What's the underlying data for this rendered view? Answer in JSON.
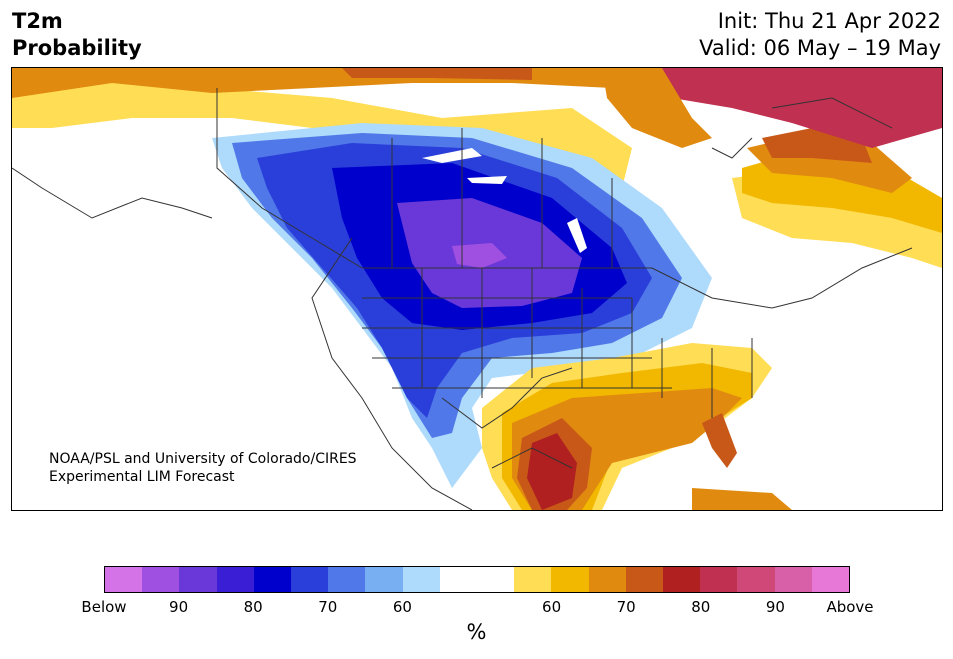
{
  "header": {
    "title": "T2m\nProbability",
    "init": "Init: Thu 21 Apr 2022",
    "valid": "Valid: 06 May – 19 May"
  },
  "credit": {
    "line1": "NOAA/PSL and University of Colorado/CIRES",
    "line2": "Experimental LIM Forecast"
  },
  "legend": {
    "unit": "%",
    "colors": [
      "#d472e8",
      "#a050e0",
      "#6a38d8",
      "#3a1ed6",
      "#0000cc",
      "#2a3fda",
      "#5078e8",
      "#78aef2",
      "#aedafb",
      "#ffffff",
      "#ffffff",
      "#ffdd55",
      "#f2b800",
      "#e08a10",
      "#c85818",
      "#b02020",
      "#c03050",
      "#d04878",
      "#d860a8",
      "#e878d8"
    ],
    "ticks": [
      "Below",
      "90",
      "80",
      "70",
      "60",
      "60",
      "70",
      "80",
      "90",
      "Above"
    ]
  },
  "map_colors": {
    "ocean": "#ffffff",
    "land": "#ffffff",
    "border": "#333333"
  }
}
